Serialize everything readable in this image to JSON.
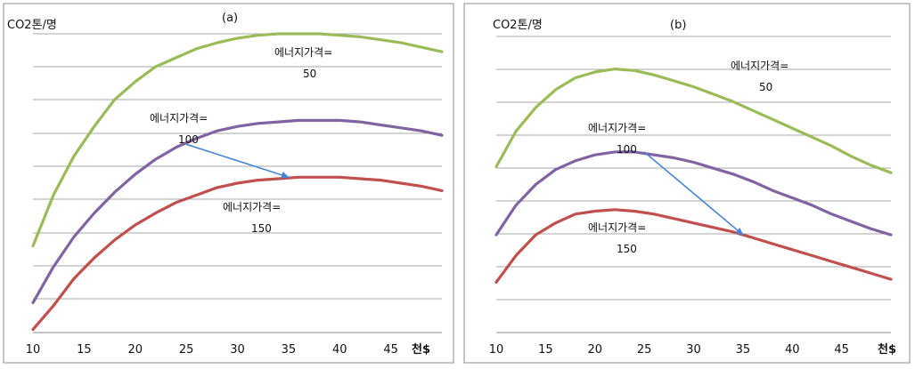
{
  "colors": {
    "green": "#9bbb59",
    "purple": "#8064a2",
    "red": "#c0504d",
    "arrow": "#4a86cf",
    "grid": "#8c8c8c"
  },
  "chart_data": [
    {
      "type": "line",
      "title": "(a)",
      "ylabel": "CO2톤/명",
      "xlabel": "천$",
      "x_ticks": [
        10,
        15,
        20,
        25,
        30,
        35,
        40,
        45
      ],
      "xlim": [
        10,
        50
      ],
      "ylim": [
        0,
        10
      ],
      "grid": true,
      "series": [
        {
          "key": "p50",
          "color": "#9bbb59",
          "label": [
            "에너지가격=",
            "50"
          ],
          "x": [
            10,
            12,
            14,
            16,
            18,
            20,
            22,
            24,
            26,
            28,
            30,
            32,
            34,
            36,
            38,
            40,
            42,
            44,
            46,
            48,
            50
          ],
          "y": [
            2.9,
            4.6,
            5.9,
            6.9,
            7.8,
            8.4,
            8.9,
            9.2,
            9.5,
            9.7,
            9.85,
            9.95,
            10.0,
            10.0,
            10.0,
            9.95,
            9.9,
            9.8,
            9.7,
            9.55,
            9.4
          ]
        },
        {
          "key": "p100",
          "color": "#8064a2",
          "label": [
            "에너지가격=",
            "100"
          ],
          "x": [
            10,
            12,
            14,
            16,
            18,
            20,
            22,
            24,
            26,
            28,
            30,
            32,
            34,
            36,
            38,
            40,
            42,
            44,
            46,
            48,
            50
          ],
          "y": [
            1.0,
            2.2,
            3.2,
            4.0,
            4.7,
            5.3,
            5.8,
            6.2,
            6.5,
            6.75,
            6.9,
            7.0,
            7.05,
            7.1,
            7.1,
            7.1,
            7.05,
            6.95,
            6.85,
            6.75,
            6.6
          ]
        },
        {
          "key": "p150",
          "color": "#c0504d",
          "label": [
            "에너지가격=",
            "150"
          ],
          "x": [
            10,
            12,
            14,
            16,
            18,
            20,
            22,
            24,
            26,
            28,
            30,
            32,
            34,
            36,
            38,
            40,
            42,
            44,
            46,
            48,
            50
          ],
          "y": [
            0.1,
            0.9,
            1.8,
            2.5,
            3.1,
            3.6,
            4.0,
            4.35,
            4.6,
            4.85,
            5.0,
            5.1,
            5.15,
            5.2,
            5.2,
            5.2,
            5.15,
            5.1,
            5.0,
            4.9,
            4.75
          ]
        }
      ],
      "arrow": {
        "from": [
          25,
          6.3
        ],
        "to": [
          35,
          5.2
        ]
      }
    },
    {
      "type": "line",
      "title": "(b)",
      "ylabel": "CO2톤/명",
      "xlabel": "천$",
      "x_ticks": [
        10,
        15,
        20,
        25,
        30,
        35,
        40,
        45
      ],
      "xlim": [
        10,
        50
      ],
      "ylim": [
        0,
        10
      ],
      "grid": true,
      "series": [
        {
          "key": "p50",
          "color": "#9bbb59",
          "label": [
            "에너지가격=",
            "50"
          ],
          "x": [
            10,
            12,
            14,
            16,
            18,
            20,
            22,
            24,
            26,
            28,
            30,
            32,
            34,
            36,
            38,
            40,
            42,
            44,
            46,
            48,
            50
          ],
          "y": [
            5.6,
            6.8,
            7.6,
            8.2,
            8.6,
            8.8,
            8.9,
            8.85,
            8.7,
            8.5,
            8.3,
            8.05,
            7.8,
            7.5,
            7.2,
            6.9,
            6.6,
            6.3,
            5.95,
            5.65,
            5.4
          ]
        },
        {
          "key": "p100",
          "color": "#8064a2",
          "label": [
            "에너지가격=",
            "100"
          ],
          "x": [
            10,
            12,
            14,
            16,
            18,
            20,
            22,
            24,
            26,
            28,
            30,
            32,
            34,
            36,
            38,
            40,
            42,
            44,
            46,
            48,
            50
          ],
          "y": [
            3.3,
            4.3,
            5.0,
            5.5,
            5.8,
            6.0,
            6.1,
            6.1,
            6.0,
            5.9,
            5.75,
            5.55,
            5.35,
            5.1,
            4.8,
            4.55,
            4.3,
            4.0,
            3.75,
            3.5,
            3.3
          ]
        },
        {
          "key": "p150",
          "color": "#c0504d",
          "label": [
            "에너지가격=",
            "150"
          ],
          "x": [
            10,
            12,
            14,
            16,
            18,
            20,
            22,
            24,
            26,
            28,
            30,
            32,
            34,
            36,
            38,
            40,
            42,
            44,
            46,
            48,
            50
          ],
          "y": [
            1.7,
            2.6,
            3.3,
            3.7,
            4.0,
            4.1,
            4.15,
            4.1,
            4.0,
            3.85,
            3.7,
            3.55,
            3.4,
            3.2,
            3.0,
            2.8,
            2.6,
            2.4,
            2.2,
            2.0,
            1.8
          ]
        }
      ],
      "arrow": {
        "from": [
          25,
          6.1
        ],
        "to": [
          35,
          3.3
        ]
      }
    }
  ]
}
